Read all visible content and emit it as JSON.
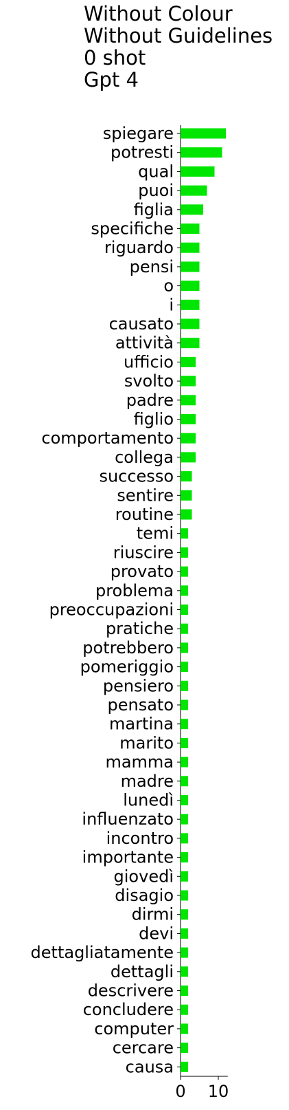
{
  "title_lines": [
    "Without Colour",
    "Without Guidelines",
    "0 shot",
    "Gpt 4"
  ],
  "chart_data": {
    "type": "bar",
    "orientation": "horizontal",
    "title": "Without Colour\nWithout Guidelines\n0 shot\nGpt 4",
    "xlabel": "",
    "ylabel": "",
    "xlim": [
      0,
      12.5
    ],
    "xticks": [
      0,
      10
    ],
    "grid": false,
    "bar_color": "#00e600",
    "categories": [
      "spiegare",
      "potresti",
      "qual",
      "puoi",
      "figlia",
      "specifiche",
      "riguardo",
      "pensi",
      "o",
      "i",
      "causato",
      "attività",
      "ufficio",
      "svolto",
      "padre",
      "figlio",
      "comportamento",
      "collega",
      "successo",
      "sentire",
      "routine",
      "temi",
      "riuscire",
      "provato",
      "problema",
      "preoccupazioni",
      "pratiche",
      "potrebbero",
      "pomeriggio",
      "pensiero",
      "pensato",
      "martina",
      "marito",
      "mamma",
      "madre",
      "lunedì",
      "influenzato",
      "incontro",
      "importante",
      "giovedì",
      "disagio",
      "dirmi",
      "devi",
      "dettagliatamente",
      "dettagli",
      "descrivere",
      "concludere",
      "computer",
      "cercare",
      "causa"
    ],
    "values": [
      12,
      11,
      9,
      7,
      6,
      5,
      5,
      5,
      5,
      5,
      5,
      5,
      4,
      4,
      4,
      4,
      4,
      4,
      3,
      3,
      3,
      2,
      2,
      2,
      2,
      2,
      2,
      2,
      2,
      2,
      2,
      2,
      2,
      2,
      2,
      2,
      2,
      2,
      2,
      2,
      2,
      2,
      2,
      2,
      2,
      2,
      2,
      2,
      2,
      2
    ]
  }
}
